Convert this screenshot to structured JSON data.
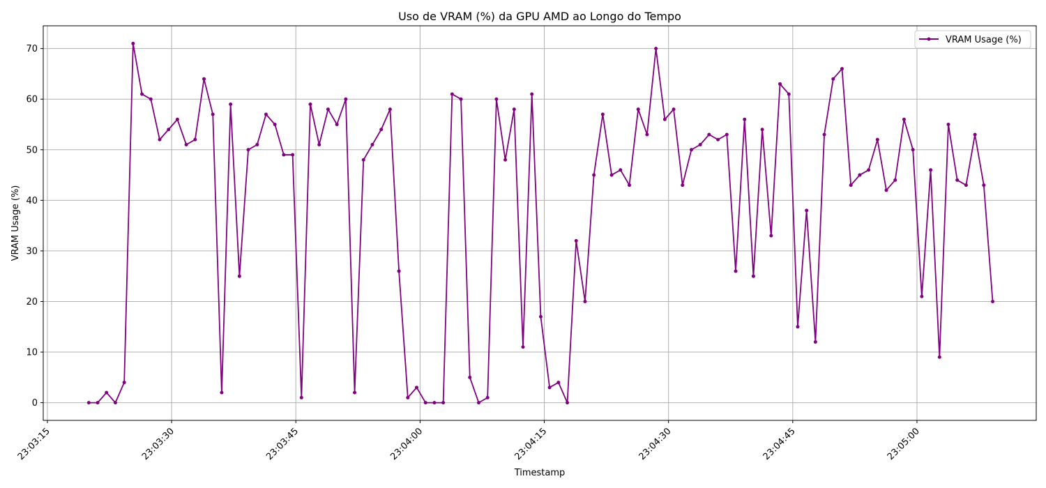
{
  "chart_data": {
    "type": "line",
    "title": "Uso de VRAM (%) da GPU AMD ao Longo do Tempo",
    "xlabel": "Timestamp",
    "ylabel": "VRAM Usage (%)",
    "x_ticks": [
      "23:03:15",
      "23:03:30",
      "23:03:45",
      "23:04:00",
      "23:04:15",
      "23:04:30",
      "23:04:45",
      "23:05:00"
    ],
    "y_ticks": [
      0,
      10,
      20,
      30,
      40,
      50,
      60,
      70
    ],
    "xlim": [
      "23:03:14.5",
      "23:05:14.4"
    ],
    "ylim": [
      -3.5,
      74.5
    ],
    "x_start": "23:03:20",
    "x_step_seconds": 1.07,
    "grid": true,
    "legend_position": "top-right",
    "color": "#800080",
    "series": [
      {
        "name": "VRAM Usage (%)",
        "values": [
          0,
          0,
          2,
          0,
          4,
          71,
          61,
          60,
          52,
          54,
          56,
          51,
          52,
          64,
          57,
          2,
          59,
          25,
          50,
          51,
          57,
          55,
          49,
          49,
          1,
          59,
          51,
          58,
          55,
          60,
          2,
          48,
          51,
          54,
          58,
          26,
          1,
          3,
          0,
          0,
          0,
          61,
          60,
          5,
          0,
          1,
          60,
          48,
          58,
          11,
          61,
          17,
          3,
          4,
          0,
          32,
          20,
          45,
          57,
          45,
          46,
          43,
          58,
          53,
          70,
          56,
          58,
          43,
          50,
          51,
          53,
          52,
          53,
          26,
          56,
          25,
          54,
          33,
          63,
          61,
          15,
          38,
          12,
          53,
          64,
          66,
          43,
          45,
          46,
          52,
          42,
          44,
          56,
          50,
          21,
          46,
          9,
          55,
          44,
          43,
          53,
          43,
          20
        ]
      }
    ]
  }
}
